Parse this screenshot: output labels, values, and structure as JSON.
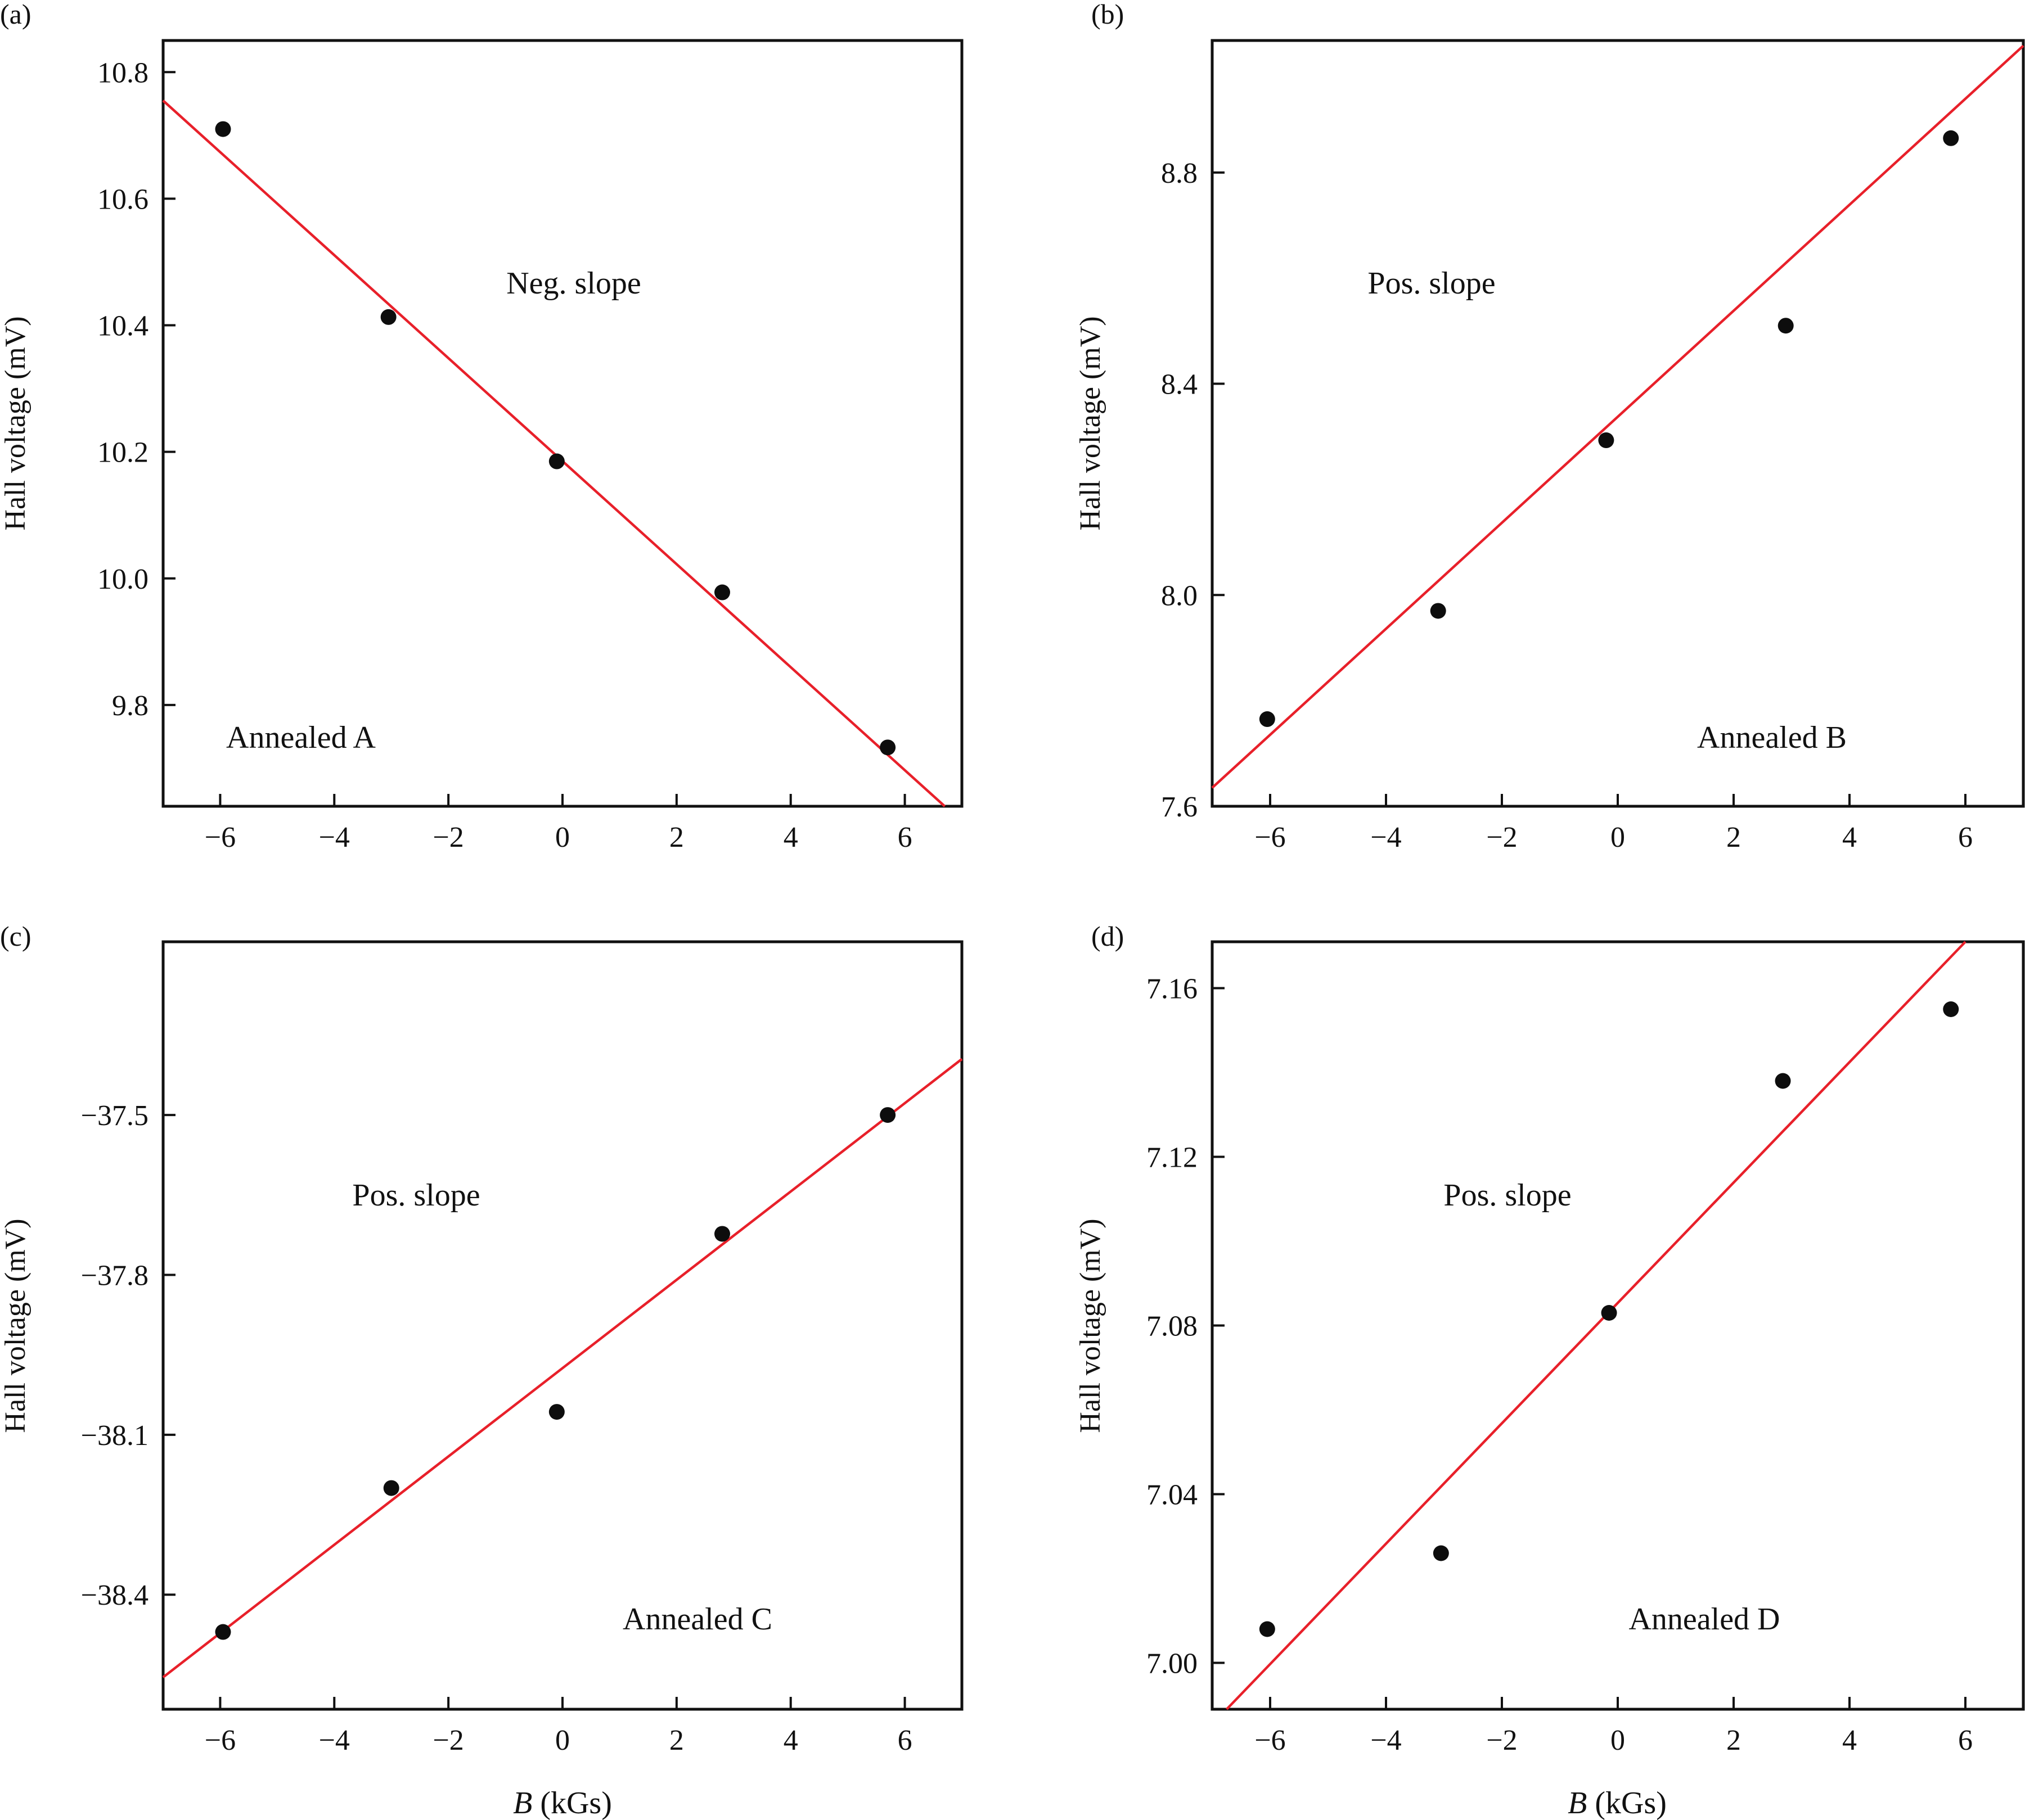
{
  "colors": {
    "axis": "#111111",
    "fit_line": "#e8202a",
    "points": "#0d0d0d",
    "background": "#ffffff"
  },
  "chart_data": [
    {
      "panel_label": "(a)",
      "type": "scatter",
      "title": "",
      "xlabel_italic": "",
      "xlabel_rest": "",
      "ylabel": "Hall voltage (mV)",
      "xlim": [
        -7,
        7
      ],
      "ylim": [
        9.64,
        10.85
      ],
      "xticks": [
        -6,
        -4,
        -2,
        0,
        2,
        4,
        6
      ],
      "xtick_labels": [
        "−6",
        "−4",
        "−2",
        "0",
        "2",
        "4",
        "6"
      ],
      "yticks": [
        9.8,
        10.0,
        10.2,
        10.4,
        10.6,
        10.8
      ],
      "ytick_labels": [
        "9.8",
        "10.0",
        "10.2",
        "10.4",
        "10.6",
        "10.8"
      ],
      "series": [
        {
          "points": [
            {
              "x": -5.95,
              "y": 10.71
            },
            {
              "x": -3.05,
              "y": 10.413
            },
            {
              "x": -0.1,
              "y": 10.185
            },
            {
              "x": 2.8,
              "y": 9.978
            },
            {
              "x": 5.7,
              "y": 9.733
            }
          ],
          "fit": {
            "x": [
              -7,
              6.7
            ],
            "y": [
              10.755,
              9.64
            ]
          }
        }
      ],
      "annotations": [
        "Neg. slope",
        "Annealed A"
      ],
      "grid": false,
      "legend": "none"
    },
    {
      "panel_label": "(b)",
      "type": "scatter",
      "title": "",
      "xlabel_italic": "",
      "xlabel_rest": "",
      "ylabel": "Hall voltage (mV)",
      "xlim": [
        -7,
        7
      ],
      "ylim": [
        7.6,
        9.05
      ],
      "xticks": [
        -6,
        -4,
        -2,
        0,
        2,
        4,
        6
      ],
      "xtick_labels": [
        "−6",
        "−4",
        "−2",
        "0",
        "2",
        "4",
        "6"
      ],
      "yticks": [
        7.6,
        8.0,
        8.4,
        8.8
      ],
      "ytick_labels": [
        "7.6",
        "8.0",
        "8.4",
        "8.8"
      ],
      "series": [
        {
          "points": [
            {
              "x": -6.05,
              "y": 7.765
            },
            {
              "x": -3.1,
              "y": 7.97
            },
            {
              "x": -0.2,
              "y": 8.293
            },
            {
              "x": 2.9,
              "y": 8.51
            },
            {
              "x": 5.75,
              "y": 8.865
            }
          ],
          "fit": {
            "x": [
              -7,
              7
            ],
            "y": [
              7.635,
              9.04
            ]
          }
        }
      ],
      "annotations": [
        "Pos. slope",
        "Annealed B"
      ],
      "grid": false,
      "legend": "none"
    },
    {
      "panel_label": "(c)",
      "type": "scatter",
      "title": "",
      "xlabel_italic": "B",
      "xlabel_rest": " (kGs)",
      "ylabel": "Hall voltage (mV)",
      "xlim": [
        -7,
        7
      ],
      "ylim": [
        -38.615,
        -37.175
      ],
      "xticks": [
        -6,
        -4,
        -2,
        0,
        2,
        4,
        6
      ],
      "xtick_labels": [
        "−6",
        "−4",
        "−2",
        "0",
        "2",
        "4",
        "6"
      ],
      "yticks": [
        -38.4,
        -38.1,
        -37.8,
        -37.5
      ],
      "ytick_labels": [
        "−38.4",
        "−38.1",
        "−37.8",
        "−37.5"
      ],
      "series": [
        {
          "points": [
            {
              "x": -5.95,
              "y": -38.47
            },
            {
              "x": -3.0,
              "y": -38.2
            },
            {
              "x": -0.1,
              "y": -38.057
            },
            {
              "x": 2.8,
              "y": -37.723
            },
            {
              "x": 5.7,
              "y": -37.5
            }
          ],
          "fit": {
            "x": [
              -7,
              7
            ],
            "y": [
              -38.555,
              -37.395
            ]
          }
        }
      ],
      "annotations": [
        "Pos. slope",
        "Annealed C"
      ],
      "grid": false,
      "legend": "none"
    },
    {
      "panel_label": "(d)",
      "type": "scatter",
      "title": "",
      "xlabel_italic": "B",
      "xlabel_rest": " (kGs)",
      "ylabel": "Hall voltage (mV)",
      "xlim": [
        -7,
        7
      ],
      "ylim": [
        6.989,
        7.171
      ],
      "xticks": [
        -6,
        -4,
        -2,
        0,
        2,
        4,
        6
      ],
      "xtick_labels": [
        "−6",
        "−4",
        "−2",
        "0",
        "2",
        "4",
        "6"
      ],
      "yticks": [
        7.0,
        7.04,
        7.08,
        7.12,
        7.16
      ],
      "ytick_labels": [
        "7.00",
        "7.04",
        "7.08",
        "7.12",
        "7.16"
      ],
      "series": [
        {
          "points": [
            {
              "x": -6.05,
              "y": 7.008
            },
            {
              "x": -3.05,
              "y": 7.026
            },
            {
              "x": -0.15,
              "y": 7.083
            },
            {
              "x": 2.85,
              "y": 7.138
            },
            {
              "x": 5.75,
              "y": 7.155
            }
          ],
          "fit": {
            "x": [
              -6.75,
              6.0
            ],
            "y": [
              6.989,
              7.171
            ]
          }
        }
      ],
      "annotations": [
        "Pos. slope",
        "Annealed D"
      ],
      "grid": false,
      "legend": "none"
    }
  ]
}
